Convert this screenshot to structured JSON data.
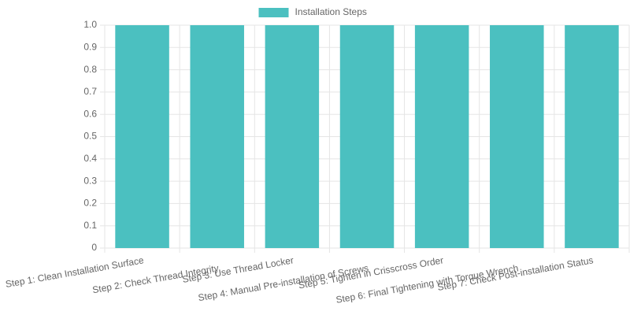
{
  "chart_data": {
    "type": "bar",
    "categories": [
      "Step 1: Clean Installation Surface",
      "Step 2: Check Thread Integrity",
      "Step 3: Use Thread Locker",
      "Step 4: Manual Pre-installation of Screws",
      "Step 5: Tighten in Crisscross Order",
      "Step 6: Final Tightening with Torque Wrench",
      "Step 7: Check Post-installation Status"
    ],
    "series": [
      {
        "name": "Installation Steps",
        "color": "#4bc0c0",
        "values": [
          1,
          1,
          1,
          1,
          1,
          1,
          1
        ]
      }
    ],
    "ylim": [
      0,
      1
    ],
    "yticks": [
      0,
      0.1,
      0.2,
      0.3,
      0.4,
      0.5,
      0.6,
      0.7,
      0.8,
      0.9,
      {
        "value": 1,
        "label": "1.0"
      }
    ],
    "grid": true,
    "legend": "top"
  }
}
